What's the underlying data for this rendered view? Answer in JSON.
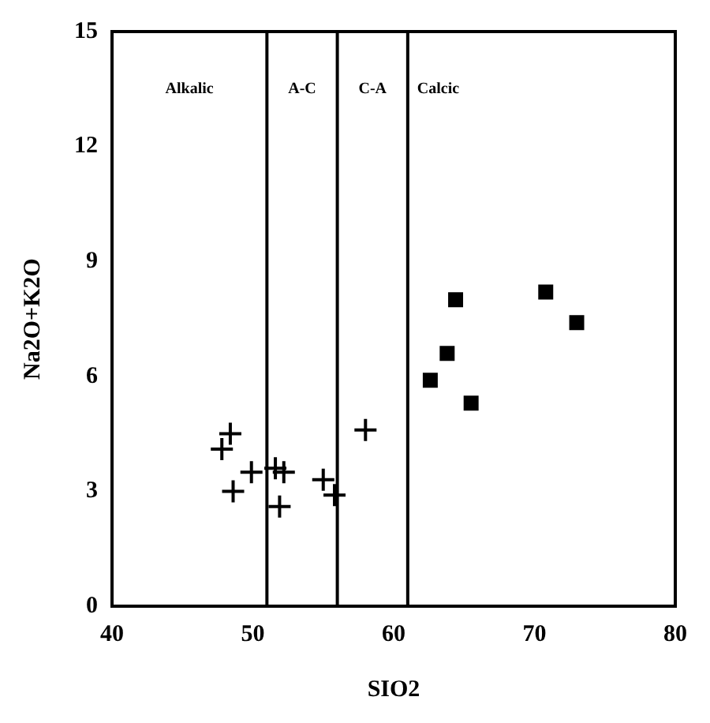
{
  "chart_data": {
    "type": "scatter",
    "xlabel": "SIO2",
    "ylabel": "Na2O+K2O",
    "xlim": [
      40,
      80
    ],
    "xticks": [
      40,
      50,
      60,
      70,
      80
    ],
    "ylim": [
      0,
      15
    ],
    "yticks": [
      0,
      3,
      6,
      9,
      12,
      15
    ],
    "grid": false,
    "legend": false,
    "series": [
      {
        "color": "#000000",
        "marker": "cross",
        "x": [
          47.8,
          48.4,
          48.6,
          49.9,
          51.6,
          52.2,
          51.9,
          55.0,
          55.8,
          58.0
        ],
        "values": [
          4.1,
          4.5,
          3.0,
          3.5,
          3.6,
          3.5,
          2.6,
          3.3,
          2.9,
          4.6
        ]
      },
      {
        "color": "#000000",
        "marker": "square",
        "x": [
          62.6,
          63.8,
          64.4,
          65.5,
          70.8,
          73.0
        ],
        "values": [
          5.9,
          6.6,
          8.0,
          5.3,
          8.2,
          7.4
        ]
      }
    ],
    "ref_lines": [
      {
        "axis": "x",
        "value": 51,
        "color": "#000000"
      },
      {
        "axis": "x",
        "value": 56,
        "color": "#000000"
      },
      {
        "axis": "x",
        "value": 61,
        "color": "#000000"
      }
    ],
    "annotations": [
      "Alkalic",
      "A-C",
      "C-A",
      "Calcic"
    ]
  }
}
